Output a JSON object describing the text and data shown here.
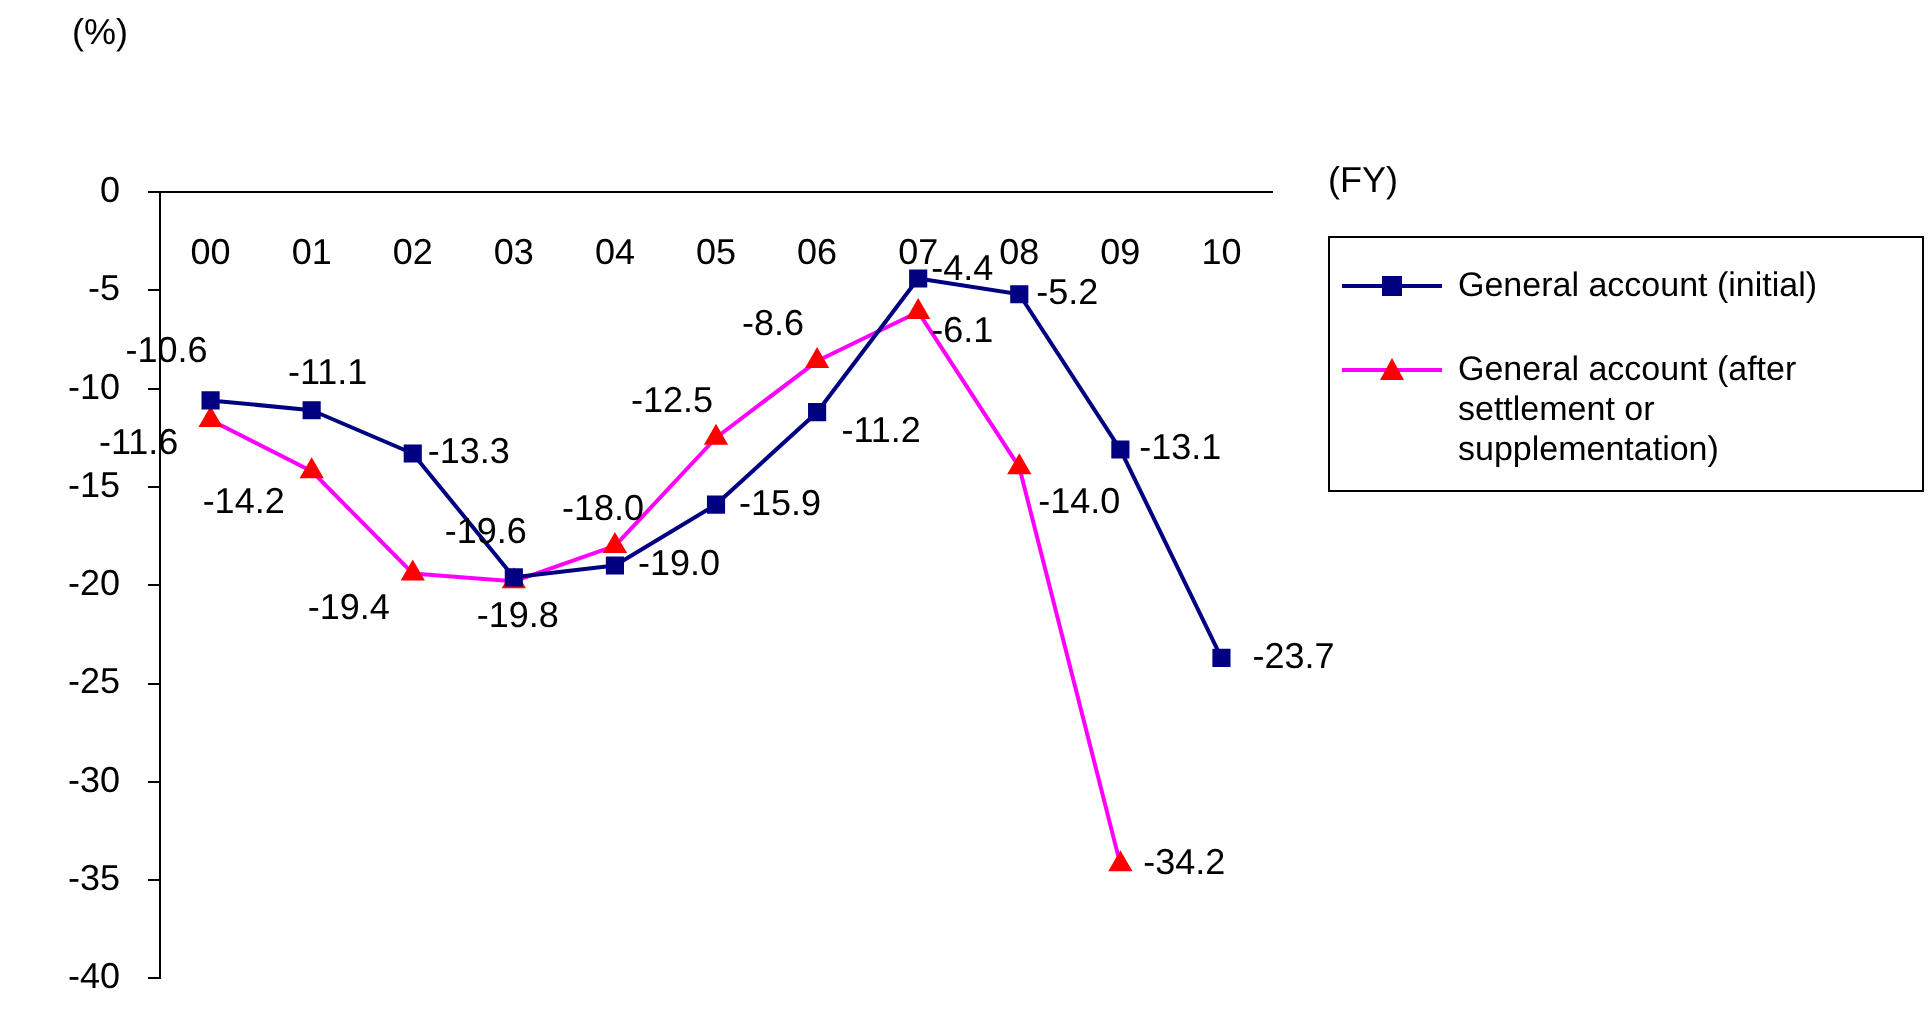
{
  "chart_data": {
    "type": "line",
    "xlabel": "(FY)",
    "ylabel": "(%)",
    "categories": [
      "00",
      "01",
      "02",
      "03",
      "04",
      "05",
      "06",
      "07",
      "08",
      "09",
      "10"
    ],
    "ylim": [
      -40,
      0
    ],
    "yticks": [
      -40,
      -35,
      -30,
      -25,
      -20,
      -15,
      -10,
      -5,
      0
    ],
    "grid": false,
    "legend": "right",
    "series": [
      {
        "name": "General account (initial)",
        "color": "#000080",
        "marker": "square",
        "values": [
          -10.6,
          -11.1,
          -13.3,
          -19.6,
          -19.0,
          -15.9,
          -11.2,
          -4.4,
          -5.2,
          -13.1,
          -23.7
        ],
        "value_labels": [
          "-10.6",
          "-11.1",
          "-13.3",
          "-19.6",
          "-19.0",
          "-15.9",
          "-11.2",
          "-4.4",
          "-5.2",
          "-13.1",
          "-23.7"
        ]
      },
      {
        "name": "General account (after settlement or supplementation)",
        "color": "#ff00ff",
        "colors": [
          "#ff0000",
          "#ff0000",
          "#ff0000",
          "#ff0000",
          "#ff0000",
          "#ff0000",
          "#ff0000",
          "#ff0000",
          "#ff0000",
          "#ff0000",
          null
        ],
        "marker": "triangle",
        "values": [
          -11.6,
          -14.2,
          -19.4,
          -19.8,
          -18.0,
          -12.5,
          -8.6,
          -6.1,
          -14.0,
          -34.2,
          null
        ],
        "value_labels": [
          "-11.6",
          "-14.2",
          "-19.4",
          "-19.8",
          "-18.0",
          "-12.5",
          "-8.6",
          "-6.1",
          "-14.0",
          "-34.2",
          null
        ]
      }
    ]
  }
}
